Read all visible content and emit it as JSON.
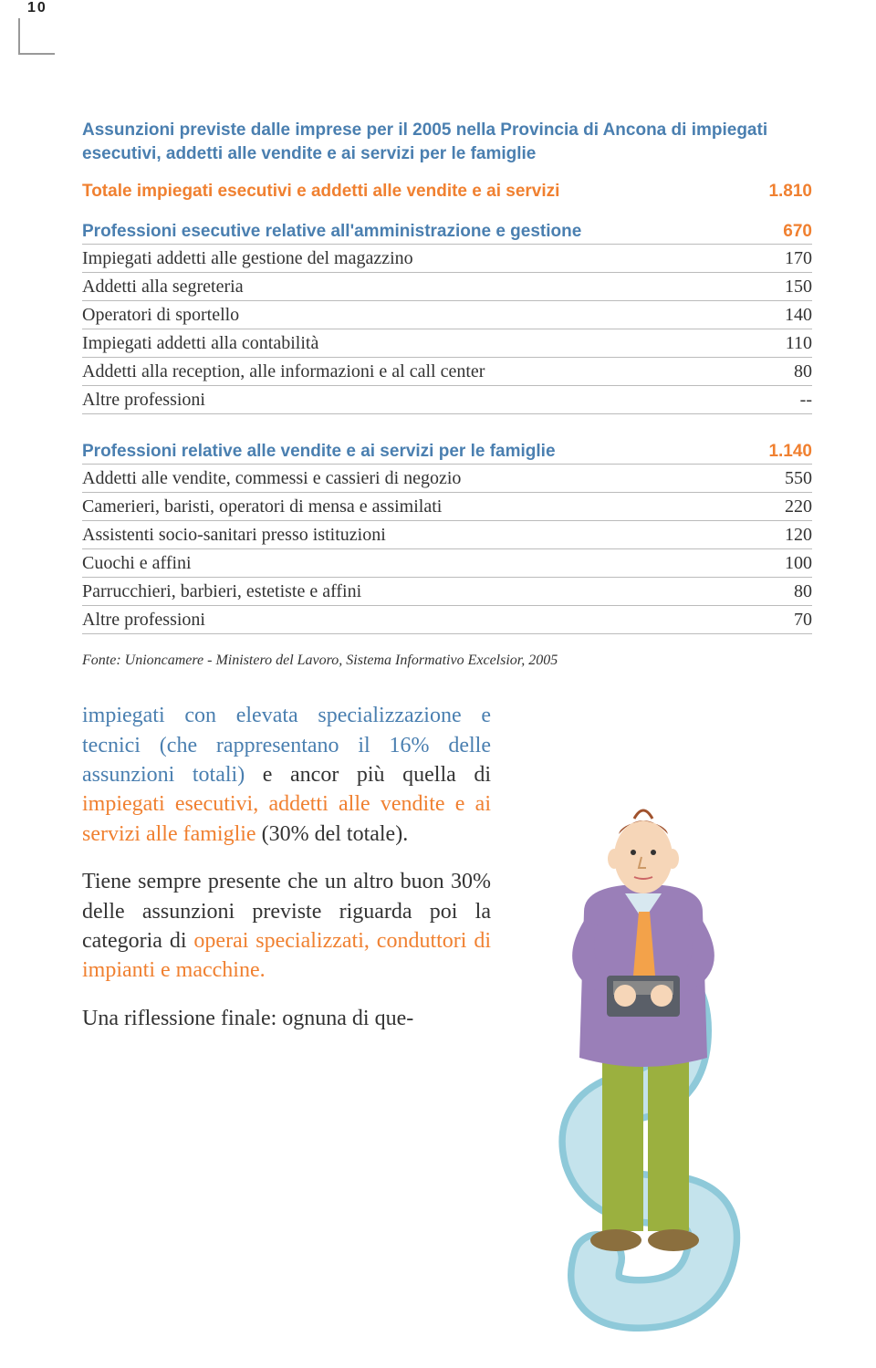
{
  "page_number": "10",
  "box": {
    "title": "Assunzioni previste dalle imprese per il 2005 nella Provincia di Ancona di impiegati esecutivi, addetti alle vendite e ai servizi per le famiglie",
    "total": {
      "label": "Totale impiegati esecutivi e addetti alle vendite e ai servizi",
      "value": "1.810"
    },
    "section1": {
      "head_label": "Professioni esecutive relative all'amministrazione e gestione",
      "head_value": "670",
      "rows": [
        {
          "label": "Impiegati addetti alle gestione del magazzino",
          "value": "170"
        },
        {
          "label": "Addetti alla segreteria",
          "value": "150"
        },
        {
          "label": "Operatori di sportello",
          "value": "140"
        },
        {
          "label": "Impiegati addetti alla contabilità",
          "value": "110"
        },
        {
          "label": "Addetti alla reception, alle informazioni e al call center",
          "value": "80"
        },
        {
          "label": "Altre professioni",
          "value": "--"
        }
      ]
    },
    "section2": {
      "head_label": "Professioni relative alle vendite e ai servizi per le famiglie",
      "head_value": "1.140",
      "rows": [
        {
          "label": "Addetti alle vendite, commessi e cassieri di negozio",
          "value": "550"
        },
        {
          "label": "Camerieri, baristi, operatori di mensa e assimilati",
          "value": "220"
        },
        {
          "label": "Assistenti socio-sanitari presso istituzioni",
          "value": "120"
        },
        {
          "label": "Cuochi e affini",
          "value": "100"
        },
        {
          "label": "Parrucchieri, barbieri, estetiste e affini",
          "value": "80"
        },
        {
          "label": "Altre professioni",
          "value": "70"
        }
      ]
    },
    "source": "Fonte: Unioncamere - Ministero del Lavoro, Sistema Informativo Excelsior, 2005"
  },
  "paragraphs": {
    "p1_a": "impiegati con elevata specializzazione e tecnici (che rappresentano il 16% delle assunzioni totali)",
    "p1_b": " e ancor più quella di ",
    "p1_c": "impiegati esecutivi, addetti alle vendite e ai servizi alle famiglie",
    "p1_d": " (30% del totale).",
    "p2_a": "Tiene sempre presente che un altro buon 30% delle assunzioni previste riguarda poi la categoria di ",
    "p2_b": "operai specializzati, conduttori di impianti e macchine.",
    "p3": "Una riflessione finale: ognuna di que-"
  },
  "illustration": {
    "body": "#9a7fb8",
    "pants": "#9bb03f",
    "tie": "#f3a24a",
    "paper": "#8ec9d9",
    "face": "#f6d6b8",
    "hair": "#a0522d",
    "machine": "#5a5f68"
  }
}
